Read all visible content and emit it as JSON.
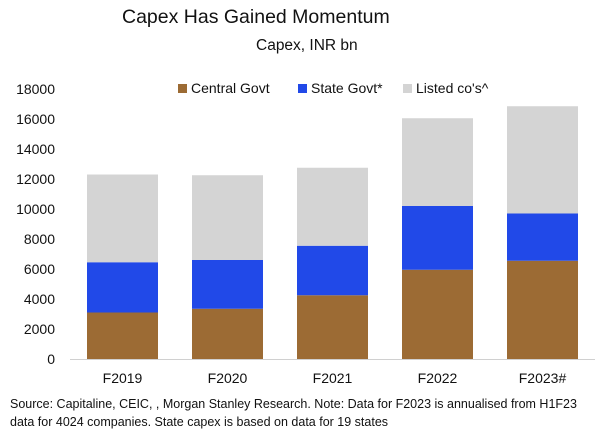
{
  "chart_data": {
    "type": "bar",
    "stacked": true,
    "title": "Capex Has Gained Momentum",
    "subtitle": "Capex, INR bn",
    "categories": [
      "F2019",
      "F2020",
      "F2021",
      "F2022",
      "F2023#"
    ],
    "series": [
      {
        "name": "Central Govt",
        "color": "#9c6b34",
        "values": [
          3100,
          3350,
          4250,
          5950,
          6550
        ]
      },
      {
        "name": "State Govt*",
        "color": "#2149e8",
        "values": [
          3350,
          3250,
          3300,
          4250,
          3150
        ]
      },
      {
        "name": "Listed co's^",
        "color": "#d4d4d4",
        "values": [
          5850,
          5650,
          5200,
          5850,
          7150
        ]
      }
    ],
    "ylim": [
      0,
      18000
    ],
    "yticks": [
      "0",
      "2000",
      "4000",
      "6000",
      "8000",
      "10000",
      "12000",
      "14000",
      "16000",
      "18000"
    ],
    "grid": false,
    "legend_position": "top"
  },
  "source_note": "Source: Capitaline, CEIC, , Morgan Stanley Research. Note: Data for F2023 is annualised from H1F23 data for 4024 companies. State capex is based on data for 19 states"
}
